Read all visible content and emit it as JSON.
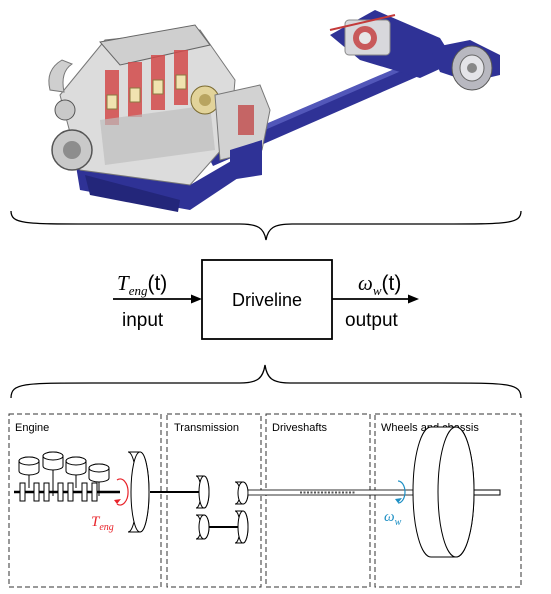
{
  "block": {
    "label": "Driveline",
    "input_symbol": "T",
    "input_sub": "eng",
    "input_arg": "(t)",
    "input_label": "input",
    "output_symbol": "ω",
    "output_sub": "w",
    "output_arg": "(t)",
    "output_label": "output"
  },
  "sections": [
    {
      "label": "Engine"
    },
    {
      "label": "Transmission"
    },
    {
      "label": "Driveshafts"
    },
    {
      "label": "Wheels and chassis"
    }
  ],
  "annotations": {
    "engine_torque_symbol": "T",
    "engine_torque_sub": "eng",
    "wheel_speed_symbol": "ω",
    "wheel_speed_sub": "w"
  },
  "colors": {
    "engine_torque": "#e8242b",
    "wheel_speed": "#1d8fc4",
    "truck_blue": "#2a2d8f",
    "line": "#000000"
  }
}
